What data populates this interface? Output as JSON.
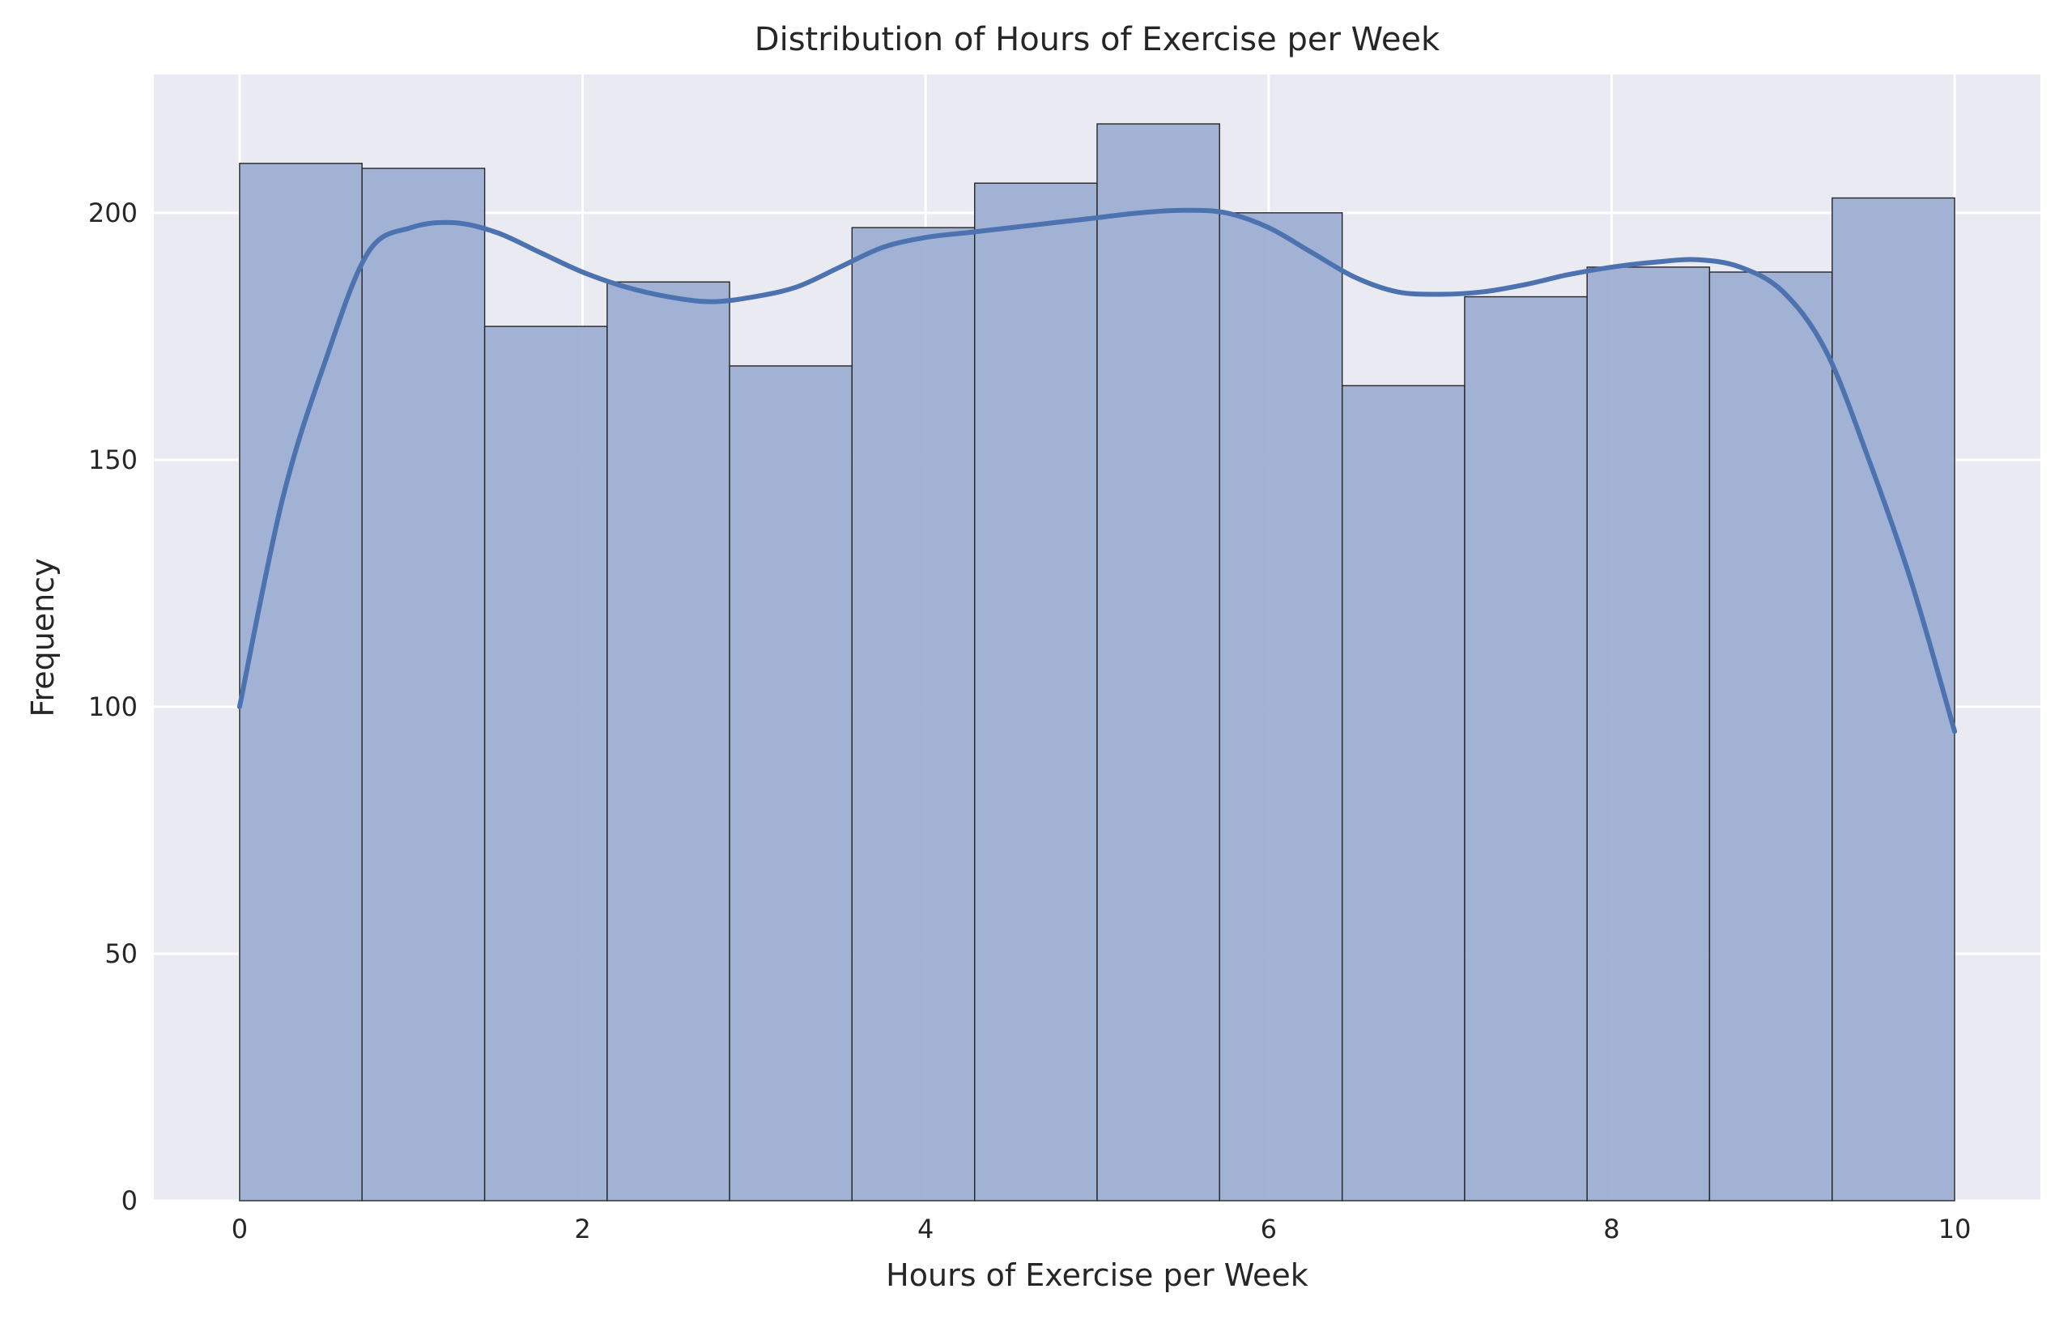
{
  "chart_data": {
    "type": "bar",
    "title": "Distribution of Hours of Exercise per Week",
    "xlabel": "Hours of Exercise per Week",
    "ylabel": "Frequency",
    "xlim": [
      -0.5,
      10.5
    ],
    "ylim": [
      0,
      228
    ],
    "xticks": [
      0,
      2,
      4,
      6,
      8,
      10
    ],
    "xtick_labels": [
      "0",
      "2",
      "4",
      "6",
      "8",
      "10"
    ],
    "yticks": [
      0,
      50,
      100,
      150,
      200
    ],
    "ytick_labels": [
      "0",
      "50",
      "100",
      "150",
      "200"
    ],
    "bins": {
      "edges": [
        0,
        0.714,
        1.429,
        2.143,
        2.857,
        3.571,
        4.286,
        5.0,
        5.714,
        6.429,
        7.143,
        7.857,
        8.571,
        9.286,
        10.0
      ],
      "counts": [
        210,
        209,
        177,
        186,
        169,
        197,
        206,
        218,
        200,
        165,
        183,
        189,
        188,
        203
      ]
    },
    "kde": {
      "x": [
        0,
        0.25,
        0.5,
        0.75,
        1.0,
        1.25,
        1.5,
        1.75,
        2.0,
        2.25,
        2.5,
        2.75,
        3.0,
        3.25,
        3.5,
        3.75,
        4.0,
        4.25,
        4.5,
        4.75,
        5.0,
        5.25,
        5.5,
        5.75,
        6.0,
        6.25,
        6.5,
        6.75,
        7.0,
        7.25,
        7.5,
        7.75,
        8.0,
        8.25,
        8.5,
        8.75,
        9.0,
        9.25,
        9.5,
        9.75,
        10.0
      ],
      "y": [
        100,
        142,
        170,
        192,
        197,
        198,
        196,
        192,
        188,
        185,
        183,
        182,
        183,
        185,
        189,
        193,
        195,
        196,
        197,
        198,
        199,
        200,
        200.5,
        200,
        197,
        192,
        187,
        184,
        183.5,
        184,
        185.5,
        187.5,
        189,
        190,
        190.5,
        189,
        184,
        172,
        150,
        125,
        95
      ]
    },
    "grid": true,
    "legend": "none",
    "colors": {
      "background": "#eaeaf2",
      "grid": "#ffffff",
      "bar_fill": "#9badd1",
      "bar_edge": "#262626",
      "kde_line": "#4c72b0"
    }
  }
}
